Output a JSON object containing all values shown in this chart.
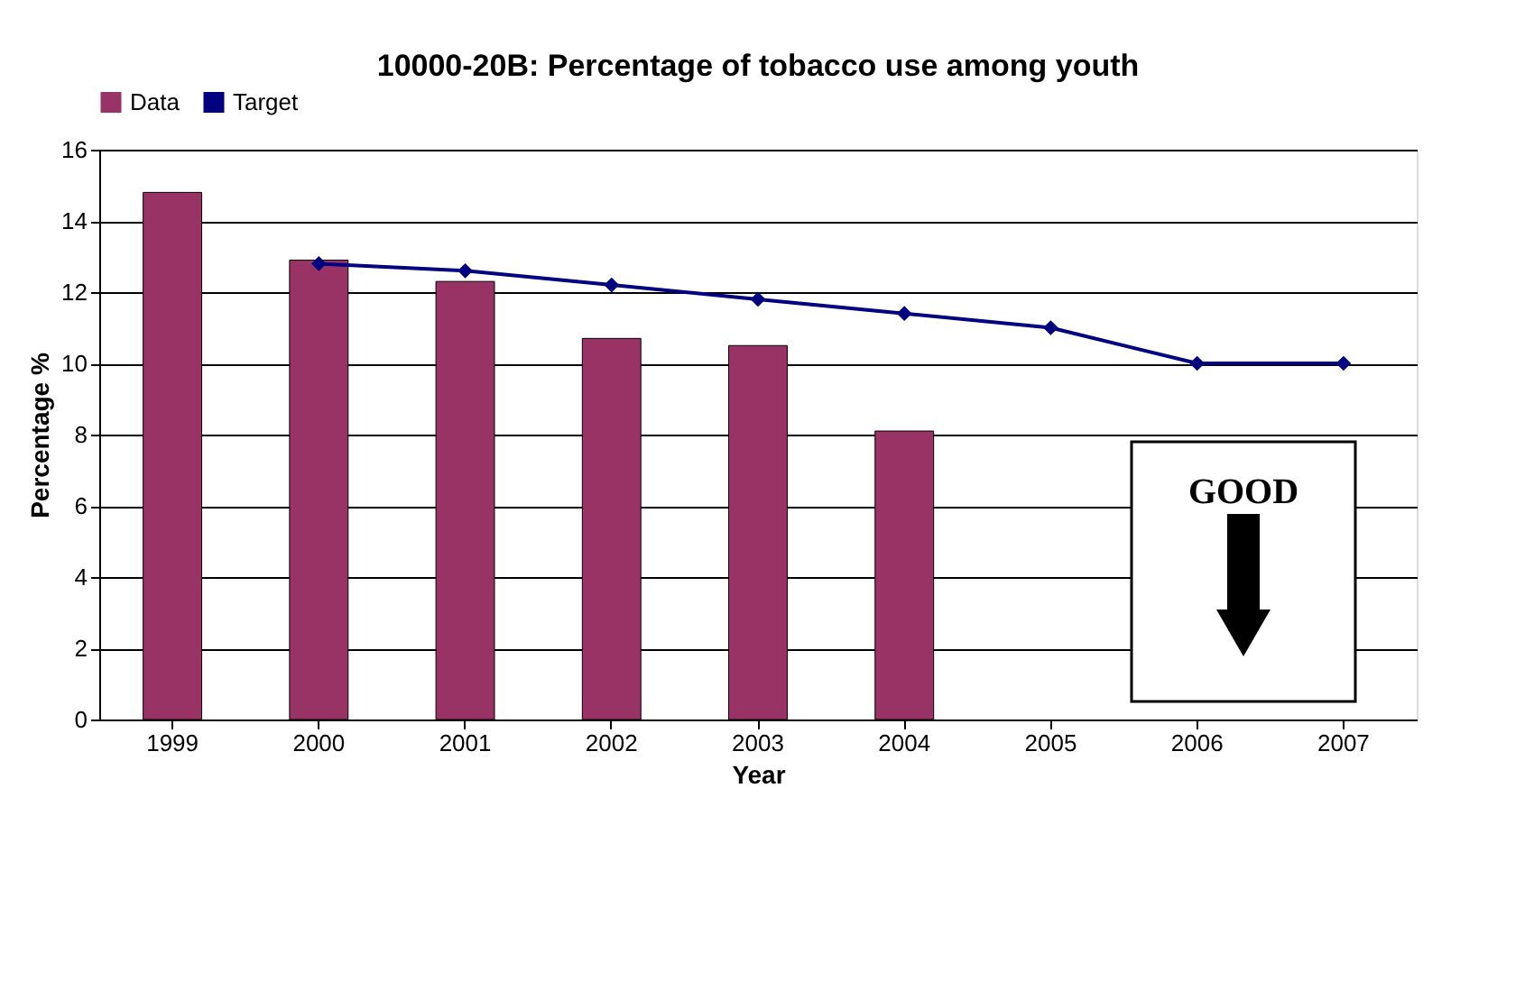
{
  "chart_data": {
    "type": "bar",
    "title": "10000-20B:  Percentage of tobacco use among youth",
    "xlabel": "Year",
    "ylabel": "Percentage %",
    "categories": [
      "1999",
      "2000",
      "2001",
      "2002",
      "2003",
      "2004",
      "2005",
      "2006",
      "2007"
    ],
    "series": [
      {
        "name": "Data",
        "type": "bar",
        "color": "#993366",
        "values": [
          14.8,
          12.9,
          12.3,
          10.7,
          10.5,
          8.1,
          null,
          null,
          null
        ]
      },
      {
        "name": "Target",
        "type": "line",
        "color": "#000080",
        "marker": "diamond",
        "values": [
          null,
          12.8,
          12.6,
          12.2,
          11.8,
          11.4,
          11.0,
          10.0,
          10.0
        ]
      }
    ],
    "ylim": [
      0,
      16
    ],
    "yticks": [
      0,
      2,
      4,
      6,
      8,
      10,
      12,
      14,
      16
    ],
    "grid": "y",
    "legend": "top",
    "annotations": [
      "GOOD"
    ]
  }
}
